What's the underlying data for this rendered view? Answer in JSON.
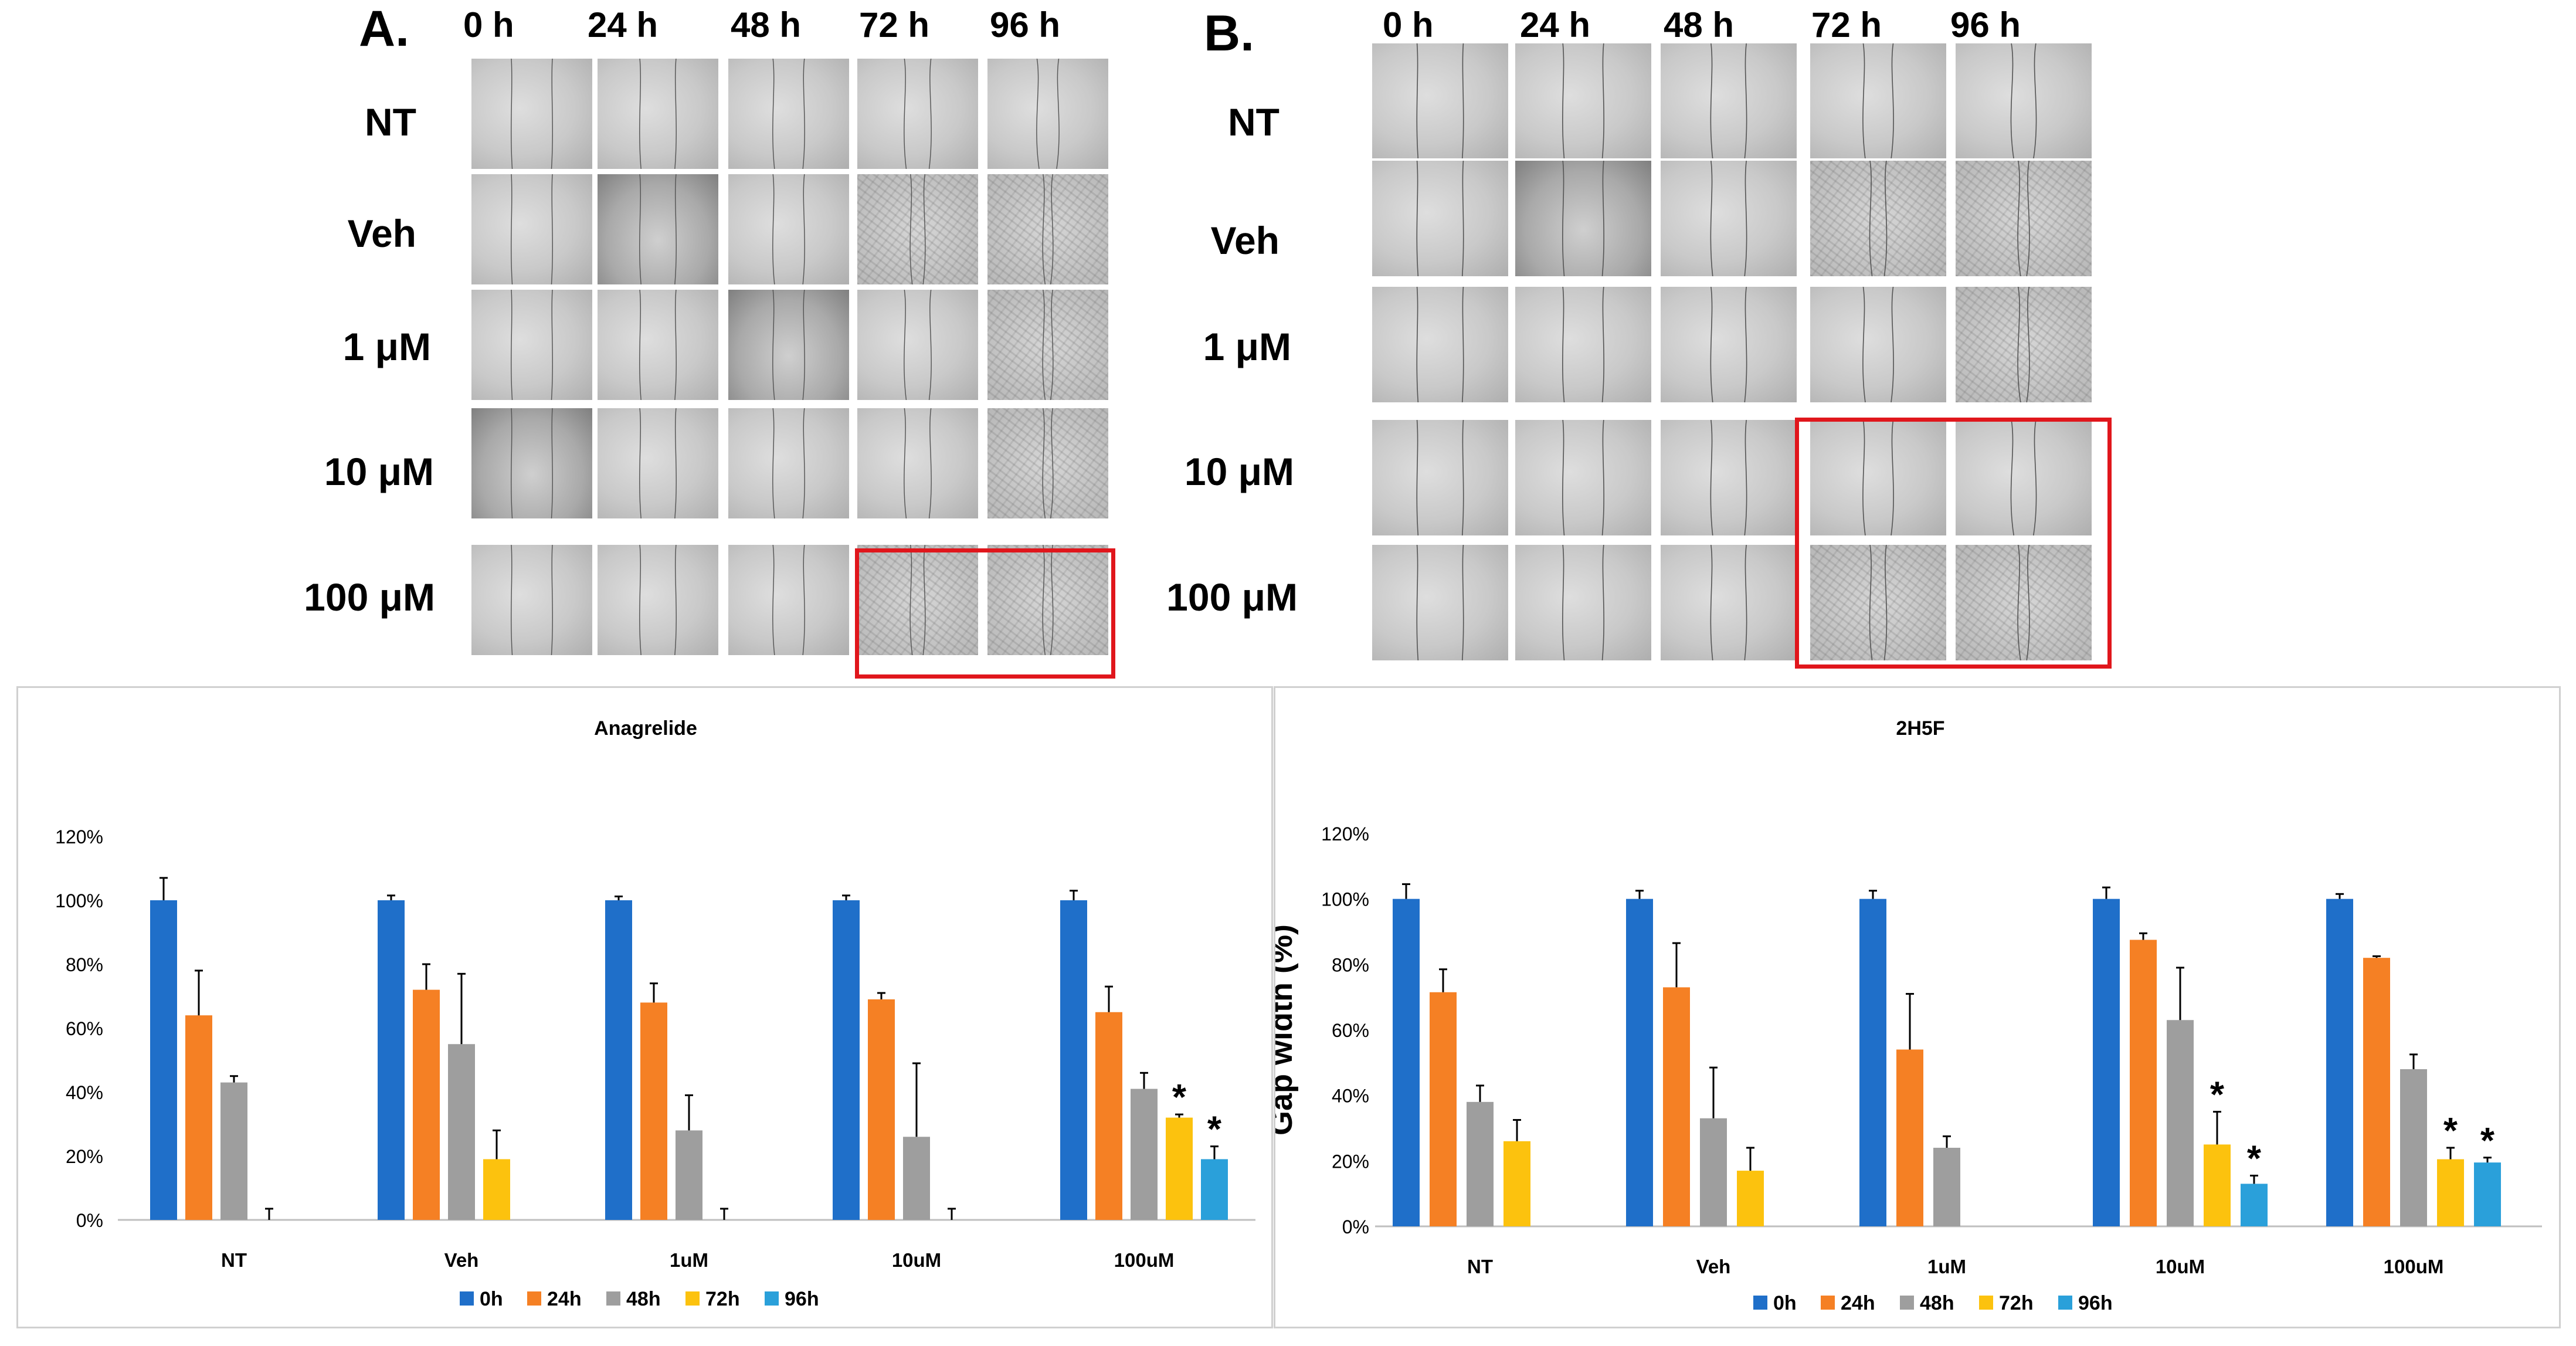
{
  "panels": [
    {
      "letter": "A.",
      "time_labels": [
        "0 h",
        "24 h",
        "48 h",
        "72 h",
        "96 h"
      ],
      "row_labels": [
        "NT",
        "Veh",
        "1 μM",
        "10 μM",
        "100 μM"
      ]
    },
    {
      "letter": "B.",
      "time_labels": [
        "0 h",
        "24 h",
        "48 h",
        "72 h",
        "96 h"
      ],
      "row_labels": [
        "NT",
        "Veh",
        "1 μM",
        "10 μM",
        "100 μM"
      ]
    }
  ],
  "colors": {
    "0h": "#1f6fc9",
    "24h": "#f58024",
    "48h": "#9e9e9e",
    "72h": "#fcc20e",
    "96h": "#2aa0da",
    "highlight": "#e0161c"
  },
  "chart_data": [
    {
      "type": "bar",
      "title": "Anagrelide",
      "xlabel": "",
      "ylabel": "",
      "ylim": [
        0,
        120
      ],
      "yticks": [
        "0%",
        "20%",
        "40%",
        "60%",
        "80%",
        "100%",
        "120%"
      ],
      "categories": [
        "NT",
        "Veh",
        "1uM",
        "10uM",
        "100uM"
      ],
      "series": [
        {
          "name": "0h",
          "values": [
            100,
            100,
            100,
            100,
            100
          ],
          "errors": [
            7,
            1.5,
            1.2,
            1.5,
            3
          ]
        },
        {
          "name": "24h",
          "values": [
            64,
            72,
            68,
            69,
            65
          ],
          "errors": [
            14,
            8,
            6,
            2,
            8
          ]
        },
        {
          "name": "48h",
          "values": [
            43,
            55,
            28,
            26,
            41
          ],
          "errors": [
            2,
            22,
            11,
            23,
            5
          ]
        },
        {
          "name": "72h",
          "values": [
            0,
            19,
            0,
            0,
            32
          ],
          "errors": [
            3.5,
            9,
            3.5,
            3.5,
            1
          ]
        },
        {
          "name": "96h",
          "values": [
            0,
            0,
            0,
            0,
            19
          ],
          "errors": [
            0,
            0,
            0,
            0,
            4
          ]
        }
      ],
      "significance": [
        {
          "category": "100uM",
          "series": "72h",
          "label": "*"
        },
        {
          "category": "100uM",
          "series": "96h",
          "label": "*"
        }
      ],
      "legend": [
        "0h",
        "24h",
        "48h",
        "72h",
        "96h"
      ],
      "legend_position": "bottom"
    },
    {
      "type": "bar",
      "title": "2H5F",
      "xlabel": "",
      "ylabel": "Gap width (%)",
      "ylim": [
        0,
        120
      ],
      "yticks": [
        "0%",
        "20%",
        "40%",
        "60%",
        "80%",
        "100%",
        "120%"
      ],
      "categories": [
        "NT",
        "Veh",
        "1uM",
        "10uM",
        "100uM"
      ],
      "series": [
        {
          "name": "0h",
          "values": [
            100,
            100,
            100,
            100,
            100
          ],
          "errors": [
            4.5,
            2.5,
            2.5,
            3.5,
            1.5
          ]
        },
        {
          "name": "24h",
          "values": [
            71.5,
            73,
            54,
            87.5,
            82
          ],
          "errors": [
            7,
            13.5,
            17,
            2,
            0.5
          ]
        },
        {
          "name": "48h",
          "values": [
            38,
            33,
            24,
            63,
            48
          ],
          "errors": [
            5,
            15.5,
            3.5,
            16,
            4.5
          ]
        },
        {
          "name": "72h",
          "values": [
            26,
            17,
            0,
            25,
            20.5
          ],
          "errors": [
            6.5,
            7,
            0,
            10,
            3.5
          ]
        },
        {
          "name": "96h",
          "values": [
            0,
            0,
            0,
            13,
            19.5
          ],
          "errors": [
            0,
            0,
            0,
            2.5,
            1.5
          ]
        }
      ],
      "significance": [
        {
          "category": "10uM",
          "series": "72h",
          "label": "*"
        },
        {
          "category": "10uM",
          "series": "96h",
          "label": "*"
        },
        {
          "category": "100uM",
          "series": "72h",
          "label": "*"
        },
        {
          "category": "100uM",
          "series": "96h",
          "label": "*"
        }
      ],
      "legend": [
        "0h",
        "24h",
        "48h",
        "72h",
        "96h"
      ],
      "legend_position": "bottom"
    }
  ]
}
